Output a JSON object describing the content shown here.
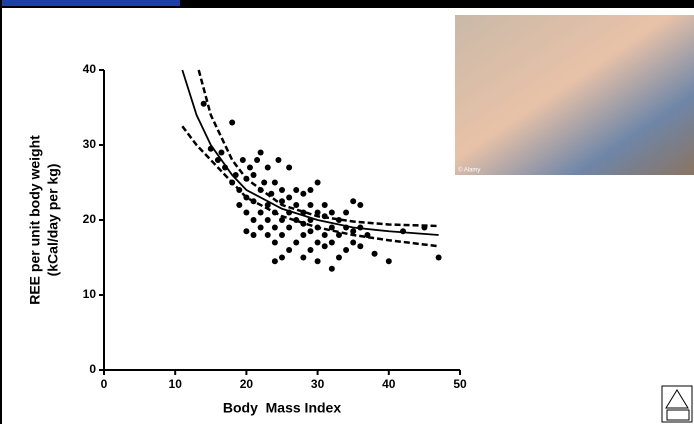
{
  "chart_data": {
    "type": "scatter",
    "x_label": "Body  Mass Index",
    "y_label": [
      "REE per unit body weight",
      "(kCal/day per kg)"
    ],
    "xlim": [
      0,
      50
    ],
    "xticks": [
      0,
      10,
      20,
      30,
      40,
      50
    ],
    "ylim": [
      0,
      40
    ],
    "yticks": [
      0,
      10,
      20,
      30,
      40
    ],
    "series": [
      {
        "type": "scatter",
        "color": "#000000",
        "x": [
          14,
          15,
          16,
          16.5,
          17,
          18,
          18,
          18.5,
          19,
          19,
          19.5,
          20,
          20,
          20,
          20,
          20.5,
          21,
          21,
          21,
          21,
          21.5,
          22,
          22,
          22,
          22,
          22.5,
          23,
          23,
          23,
          23,
          23.5,
          24,
          24,
          24,
          24,
          24,
          24.5,
          25,
          25,
          25,
          25,
          25,
          26,
          26,
          26,
          26,
          26,
          27,
          27,
          27,
          27,
          28,
          28,
          28,
          28,
          28,
          29,
          29,
          29,
          29,
          29,
          30,
          30,
          30,
          30,
          30,
          31,
          31,
          31,
          31,
          32,
          32,
          32,
          32,
          33,
          33,
          33,
          34,
          34,
          34,
          35,
          35,
          35,
          36,
          36,
          36,
          37,
          38,
          40,
          42,
          45,
          47
        ],
        "values": [
          35.5,
          29.5,
          28,
          29,
          27,
          25,
          33,
          26,
          22,
          24,
          28,
          18.5,
          21,
          23,
          25.5,
          27,
          18,
          20,
          22.5,
          26,
          28,
          19,
          21,
          24,
          29,
          25,
          18,
          20,
          22,
          27,
          23.5,
          14.5,
          17,
          19,
          21,
          25,
          28,
          15,
          18,
          20,
          22.5,
          24,
          16,
          19,
          21,
          23,
          27,
          17,
          20,
          22,
          24,
          15,
          18,
          19.5,
          21,
          23.5,
          16,
          18.5,
          20,
          22,
          24,
          14.5,
          17,
          19,
          21,
          25,
          16.5,
          18,
          20.5,
          22,
          13.5,
          17,
          19,
          21,
          15,
          18,
          20,
          16,
          19,
          21,
          17,
          18.5,
          22.5,
          16.5,
          19,
          22,
          18,
          15.5,
          14.5,
          18.5,
          19,
          15
        ]
      },
      {
        "type": "line",
        "color": "#000000",
        "dash": false,
        "x": [
          11,
          13,
          15,
          18,
          20,
          25,
          30,
          35,
          40,
          47
        ],
        "values": [
          40,
          34,
          30,
          26,
          24,
          21.5,
          20,
          19,
          18.5,
          18
        ]
      },
      {
        "type": "line",
        "color": "#000000",
        "dash": true,
        "x": [
          13.3,
          15,
          18,
          20,
          25,
          30,
          35,
          40,
          47
        ],
        "values": [
          40,
          34,
          28,
          25.5,
          22,
          20.5,
          19.8,
          19.4,
          19.2
        ]
      },
      {
        "type": "line",
        "color": "#000000",
        "dash": true,
        "x": [
          11,
          13,
          15,
          18,
          20,
          25,
          30,
          35,
          40,
          47
        ],
        "values": [
          32.5,
          30,
          28,
          25,
          23,
          20.5,
          19,
          18,
          17.3,
          16.5
        ]
      }
    ]
  },
  "photo_credit": "© Alamy"
}
